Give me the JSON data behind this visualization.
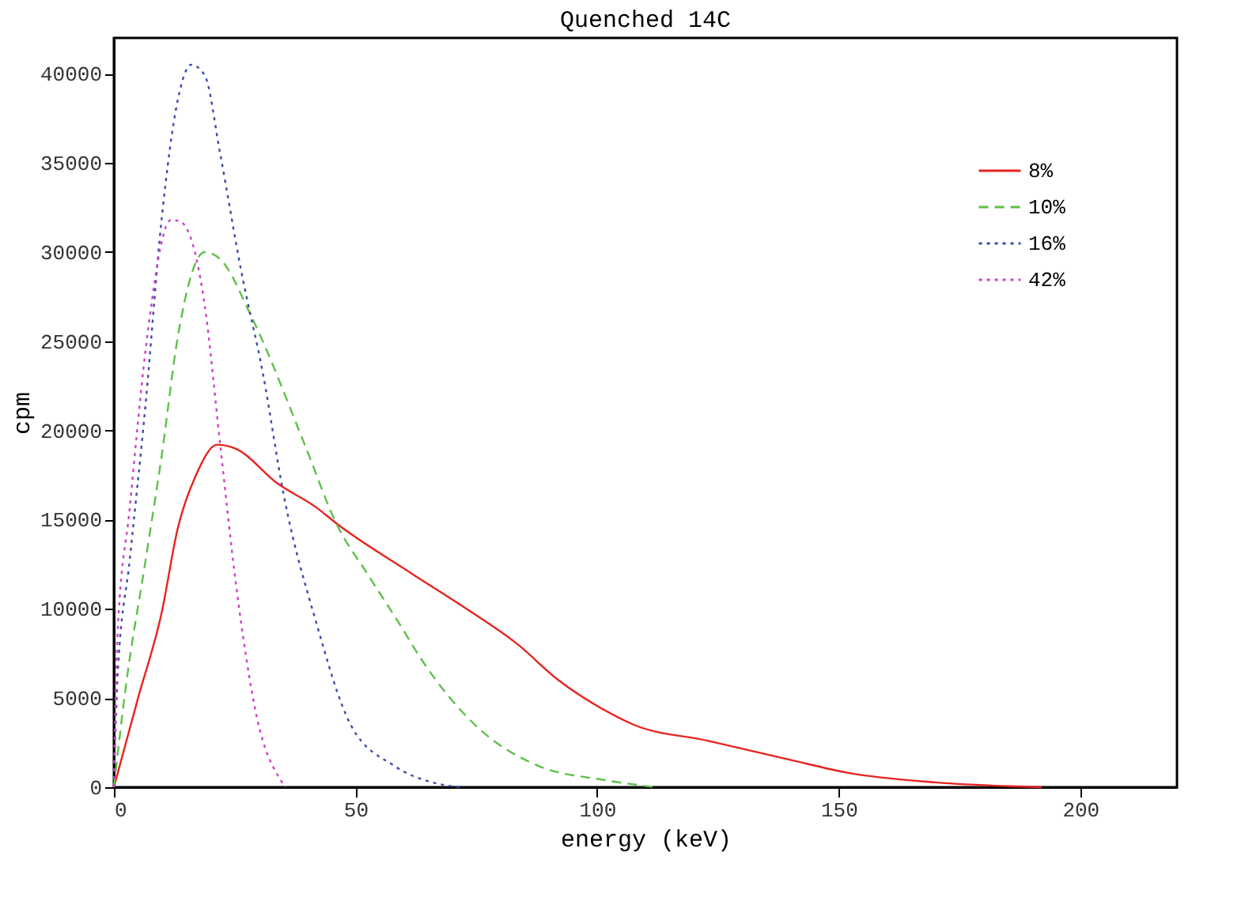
{
  "chart_data": {
    "type": "line",
    "title": "Quenched 14C",
    "xlabel": "energy (keV)",
    "ylabel": "cpm",
    "xlim": [
      0,
      220
    ],
    "xticks": [
      0,
      50,
      100,
      150,
      200
    ],
    "ylim": [
      0,
      42000
    ],
    "yticks": [
      0,
      5000,
      10000,
      15000,
      20000,
      25000,
      30000,
      35000,
      40000
    ],
    "grid": false,
    "legend": "top right",
    "marker": "none",
    "series": [
      {
        "name": "8%",
        "color": "#e8231f",
        "line_style": "solid",
        "x": [
          0,
          5,
          9.9,
          13.2,
          17,
          21.4,
          25,
          34,
          41.8,
          46,
          61.5,
          72.4,
          83.6,
          92,
          101,
          107.6,
          123,
          140.5,
          152,
          170,
          192
        ],
        "values": [
          0,
          5000,
          9800,
          14500,
          17500,
          19200,
          19000,
          17000,
          15700,
          14800,
          12000,
          10100,
          8000,
          6000,
          4400,
          3500,
          2600,
          1500,
          800,
          270,
          0
        ]
      },
      {
        "name": "10%",
        "color": "#5ec04a",
        "line_style": "dashed",
        "x": [
          0,
          2.3,
          6.6,
          9.9,
          13.2,
          18.8,
          22,
          28.6,
          39.5,
          46,
          52.6,
          59,
          63.8,
          74.7,
          87.8,
          101.6,
          112
        ],
        "values": [
          0,
          5300,
          12800,
          18600,
          25200,
          30000,
          29600,
          26300,
          19200,
          14800,
          11900,
          9200,
          7100,
          3500,
          1200,
          400,
          0
        ]
      },
      {
        "name": "16%",
        "color": "#3a4ea8",
        "line_style": "dotted",
        "x": [
          0,
          0.7,
          3.3,
          6.6,
          9.9,
          13.2,
          16,
          18.8,
          22,
          26.3,
          30.9,
          35.2,
          41.8,
          49,
          58,
          67,
          72
        ],
        "values": [
          0,
          5900,
          12800,
          21600,
          31900,
          38500,
          40500,
          39900,
          35500,
          29000,
          23100,
          16300,
          9300,
          3500,
          1200,
          200,
          0
        ]
      },
      {
        "name": "42%",
        "color": "#d040c8",
        "line_style": "dotted",
        "x": [
          0,
          0.7,
          3.3,
          6.6,
          11.8,
          13.8,
          18.8,
          22,
          25.3,
          29.6,
          34.5,
          35.5
        ],
        "values": [
          0,
          8300,
          15700,
          24600,
          31800,
          31700,
          27000,
          19200,
          11300,
          3900,
          400,
          0
        ]
      }
    ]
  }
}
